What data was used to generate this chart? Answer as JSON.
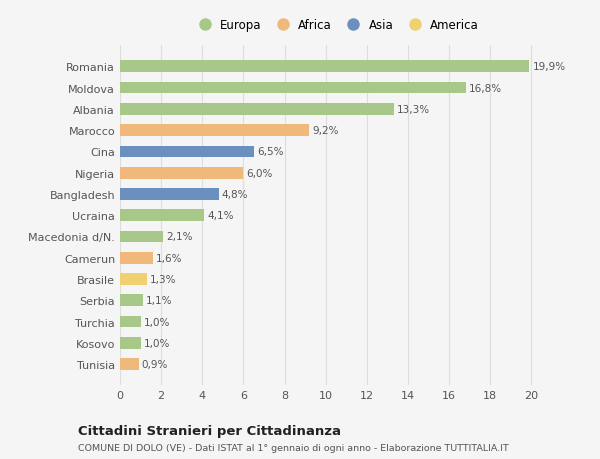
{
  "countries": [
    "Romania",
    "Moldova",
    "Albania",
    "Marocco",
    "Cina",
    "Nigeria",
    "Bangladesh",
    "Ucraina",
    "Macedonia d/N.",
    "Camerun",
    "Brasile",
    "Serbia",
    "Turchia",
    "Kosovo",
    "Tunisia"
  ],
  "values": [
    19.9,
    16.8,
    13.3,
    9.2,
    6.5,
    6.0,
    4.8,
    4.1,
    2.1,
    1.6,
    1.3,
    1.1,
    1.0,
    1.0,
    0.9
  ],
  "labels": [
    "19,9%",
    "16,8%",
    "13,3%",
    "9,2%",
    "6,5%",
    "6,0%",
    "4,8%",
    "4,1%",
    "2,1%",
    "1,6%",
    "1,3%",
    "1,1%",
    "1,0%",
    "1,0%",
    "0,9%"
  ],
  "continents": [
    "Europa",
    "Europa",
    "Europa",
    "Africa",
    "Asia",
    "Africa",
    "Asia",
    "Europa",
    "Europa",
    "Africa",
    "America",
    "Europa",
    "Europa",
    "Europa",
    "Africa"
  ],
  "colors": {
    "Europa": "#a8c88a",
    "Africa": "#f0b87a",
    "Asia": "#6b8fbf",
    "America": "#f0d070"
  },
  "legend_order": [
    "Europa",
    "Africa",
    "Asia",
    "America"
  ],
  "title": "Cittadini Stranieri per Cittadinanza",
  "subtitle": "COMUNE DI DOLO (VE) - Dati ISTAT al 1° gennaio di ogni anno - Elaborazione TUTTITALIA.IT",
  "xlim": [
    0,
    21
  ],
  "xticks": [
    0,
    2,
    4,
    6,
    8,
    10,
    12,
    14,
    16,
    18,
    20
  ],
  "background_color": "#f5f5f5",
  "grid_color": "#dddddd"
}
